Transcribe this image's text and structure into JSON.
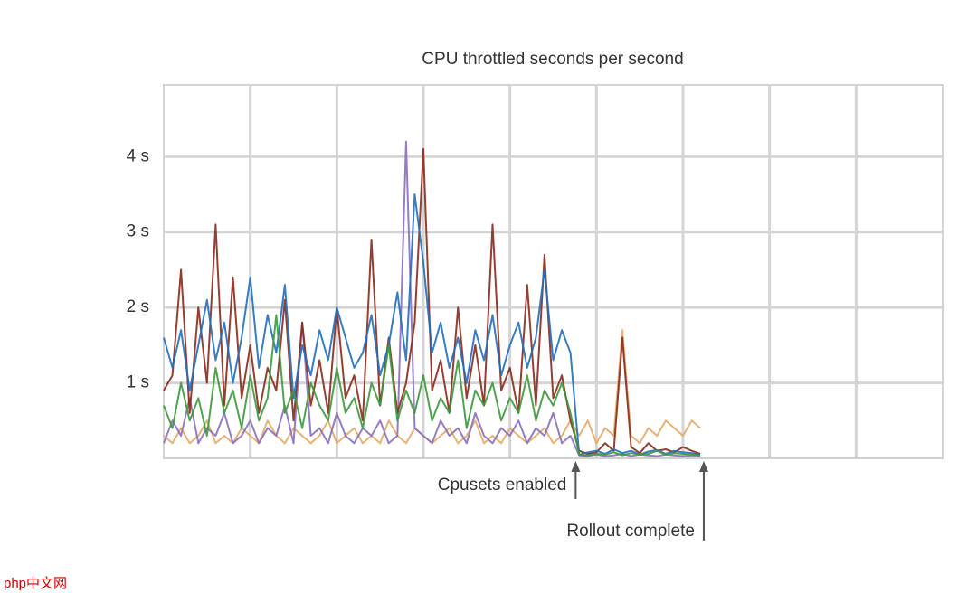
{
  "chart_data": {
    "type": "line",
    "title": "CPU throttled seconds per second",
    "x": [
      0,
      1,
      2,
      3,
      4,
      5,
      6,
      7,
      8,
      9,
      10,
      11,
      12,
      13,
      14,
      15,
      16,
      17,
      18,
      19,
      20,
      21,
      22,
      23,
      24,
      25,
      26,
      27,
      28,
      29,
      30,
      31,
      32,
      33,
      34,
      35,
      36,
      37,
      38,
      39,
      40,
      41,
      42,
      43,
      44,
      45,
      46,
      47,
      48,
      49,
      50,
      51,
      52,
      53,
      54,
      55,
      56,
      57,
      58,
      59,
      60,
      61,
      62
    ],
    "xlim": [
      0,
      90
    ],
    "ylim": [
      0,
      4.95
    ],
    "yticks": [
      {
        "value": 1,
        "label": "1 s"
      },
      {
        "value": 2,
        "label": "2 s"
      },
      {
        "value": 3,
        "label": "3 s"
      },
      {
        "value": 4,
        "label": "4 s"
      }
    ],
    "grid": true,
    "series": [
      {
        "color": "#e8a860",
        "values": [
          0.3,
          0.2,
          0.4,
          0.2,
          0.3,
          0.5,
          0.2,
          0.3,
          0.2,
          0.4,
          0.3,
          0.2,
          0.5,
          0.3,
          0.2,
          0.4,
          0.3,
          0.2,
          0.3,
          0.5,
          0.2,
          0.3,
          0.4,
          0.2,
          0.3,
          0.2,
          0.5,
          0.3,
          0.2,
          0.4,
          0.3,
          0.2,
          0.3,
          0.4,
          0.2,
          0.3,
          0.5,
          0.2,
          0.3,
          0.2,
          0.4,
          0.3,
          0.2,
          0.3,
          0.4,
          0.2,
          0.3,
          0.5,
          0.3,
          0.5,
          0.2,
          0.4,
          0.3,
          1.7,
          0.3,
          0.2,
          0.4,
          0.3,
          0.5,
          0.4,
          0.3,
          0.5,
          0.4
        ]
      },
      {
        "color": "#8a6fbf",
        "values": [
          0.2,
          0.5,
          0.3,
          0.8,
          0.2,
          0.4,
          0.3,
          0.6,
          0.2,
          0.3,
          0.5,
          0.2,
          0.4,
          0.3,
          0.7,
          0.2,
          1.8,
          0.3,
          0.4,
          0.2,
          0.6,
          0.3,
          0.2,
          0.4,
          0.3,
          0.5,
          0.2,
          0.3,
          4.2,
          0.4,
          0.3,
          0.2,
          0.5,
          0.3,
          0.4,
          0.2,
          0.6,
          0.3,
          0.2,
          0.4,
          0.3,
          0.5,
          0.2,
          0.4,
          0.3,
          0.6,
          0.2,
          0.3,
          0.04,
          0.03,
          0.05,
          0.03,
          0.04,
          0.06,
          0.03,
          0.05,
          0.04,
          0.03,
          0.05,
          0.04,
          0.03,
          0.04,
          0.03
        ]
      },
      {
        "color": "#8b2a1a",
        "values": [
          0.9,
          1.1,
          2.5,
          0.6,
          2.0,
          1.0,
          3.1,
          0.7,
          2.4,
          0.8,
          1.5,
          0.6,
          1.2,
          0.9,
          2.1,
          0.5,
          1.8,
          0.7,
          1.3,
          0.6,
          2.0,
          0.8,
          1.1,
          0.5,
          2.9,
          0.7,
          1.6,
          0.6,
          1.0,
          1.8,
          4.1,
          0.9,
          1.3,
          0.6,
          2.0,
          0.8,
          1.5,
          0.7,
          3.1,
          0.9,
          1.2,
          0.6,
          2.3,
          0.7,
          2.7,
          0.8,
          1.1,
          0.5,
          0.1,
          0.06,
          0.08,
          0.2,
          0.1,
          1.6,
          0.15,
          0.07,
          0.2,
          0.1,
          0.12,
          0.08,
          0.15,
          0.1,
          0.06
        ]
      },
      {
        "color": "#1f6fbf",
        "values": [
          1.6,
          1.2,
          1.7,
          0.9,
          1.5,
          2.1,
          1.3,
          1.8,
          1.0,
          1.6,
          2.4,
          1.2,
          1.9,
          1.4,
          2.3,
          0.8,
          1.5,
          1.1,
          1.7,
          1.3,
          2.0,
          1.6,
          1.2,
          1.4,
          1.9,
          1.1,
          1.5,
          2.2,
          1.3,
          3.5,
          2.6,
          1.4,
          1.8,
          1.2,
          1.6,
          1.0,
          1.7,
          1.3,
          1.9,
          1.1,
          1.5,
          1.8,
          1.2,
          1.6,
          2.5,
          1.3,
          1.7,
          1.4,
          0.05,
          0.08,
          0.1,
          0.06,
          0.12,
          0.07,
          0.1,
          0.05,
          0.09,
          0.11,
          0.06,
          0.1,
          0.08,
          0.07,
          0.05
        ]
      },
      {
        "color": "#3a9a3a",
        "values": [
          0.7,
          0.4,
          1.0,
          0.5,
          0.8,
          0.3,
          1.2,
          0.6,
          0.9,
          0.4,
          1.1,
          0.5,
          0.8,
          1.9,
          0.6,
          0.9,
          0.4,
          1.0,
          0.7,
          0.5,
          1.2,
          0.6,
          0.8,
          0.4,
          1.0,
          0.7,
          1.5,
          0.5,
          0.9,
          0.6,
          1.1,
          0.5,
          0.8,
          0.6,
          1.3,
          0.4,
          0.9,
          0.7,
          1.0,
          0.5,
          0.8,
          0.6,
          1.1,
          0.5,
          0.9,
          0.7,
          1.0,
          0.6,
          0.05,
          0.04,
          0.06,
          0.05,
          0.08,
          0.04,
          0.07,
          0.05,
          0.06,
          0.1,
          0.05,
          0.07,
          0.06,
          0.05,
          0.04
        ]
      }
    ],
    "annotations": [
      {
        "text": "Cpusets enabled",
        "x": 47.6
      },
      {
        "text": "Rollout complete",
        "x": 62.4
      }
    ]
  },
  "watermark": "php中文网"
}
